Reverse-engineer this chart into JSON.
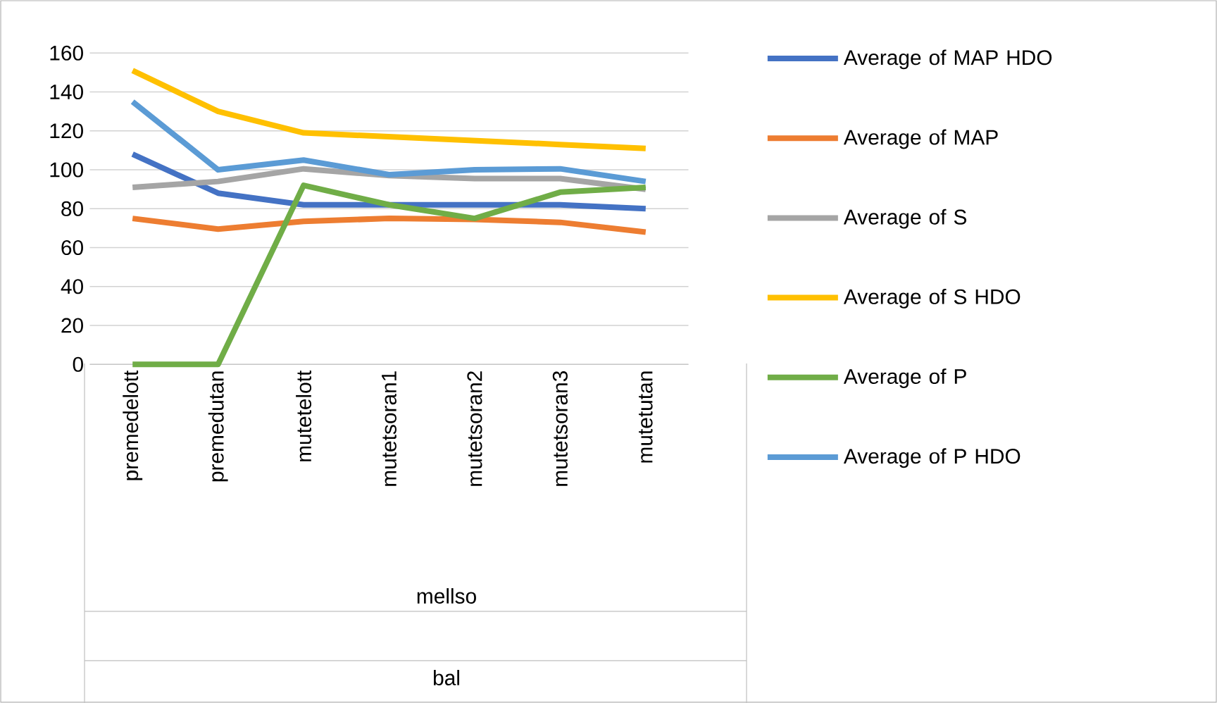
{
  "chart_data": {
    "type": "line",
    "categories": [
      "premedelott",
      "premedutan",
      "mutetelott",
      "mutetsoran1",
      "mutetsoran2",
      "mutetsoran3",
      "mutetutan"
    ],
    "series": [
      {
        "name": "Average of MAP HDO",
        "color": "#4472c4",
        "values": [
          108,
          88,
          82,
          82,
          82,
          82,
          80
        ]
      },
      {
        "name": "Average of MAP",
        "color": "#ed7d31",
        "values": [
          75,
          69.5,
          73.5,
          75,
          74.5,
          73,
          68
        ]
      },
      {
        "name": "Average of S",
        "color": "#a5a5a5",
        "values": [
          91,
          94,
          100.5,
          97,
          95.5,
          95.5,
          90
        ]
      },
      {
        "name": "Average of S HDO",
        "color": "#ffc000",
        "values": [
          151,
          130,
          119,
          117,
          115,
          113,
          111
        ]
      },
      {
        "name": "Average of P",
        "color": "#70ad47",
        "values": [
          0,
          0,
          92,
          82,
          75,
          88.5,
          91
        ]
      },
      {
        "name": "Average of P HDO",
        "color": "#5b9bd5",
        "values": [
          135,
          100,
          105,
          97.5,
          100,
          100.5,
          94
        ]
      }
    ],
    "ylim": [
      0,
      160
    ],
    "yticks": [
      0,
      20,
      40,
      60,
      80,
      100,
      120,
      140,
      160
    ],
    "grid": "y",
    "legend": "right",
    "marker": "none",
    "line_style": "solid",
    "annotations": [
      "mellso",
      "bal"
    ]
  }
}
